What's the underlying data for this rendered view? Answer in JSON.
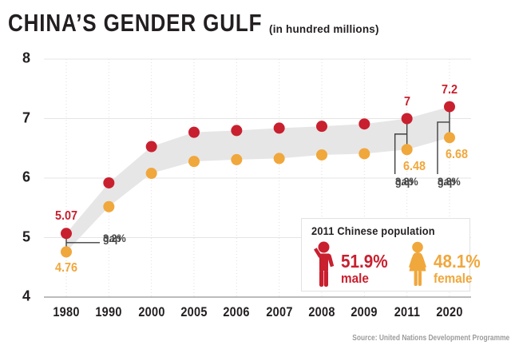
{
  "header": {
    "title": "CHINA’S GENDER GULF",
    "subtitle": "(in hundred millions)"
  },
  "colors": {
    "male": "#c8202f",
    "female": "#f0a73c",
    "band": "#e6e6e6",
    "grid": "#e4e4e4",
    "grid_dotted": "#dedede",
    "axis_baseline": "#bcbcbc",
    "connector": "#3f3f3f",
    "text_dark": "#231f20",
    "gap_text": "#4a4a4a",
    "source_text": "#9c9c9c"
  },
  "chart_data": {
    "type": "line",
    "title": "CHINA’S GENDER GULF",
    "subtitle": "(in hundred millions)",
    "xlabel": "",
    "ylabel": "",
    "categories": [
      "1980",
      "1990",
      "2000",
      "2005",
      "2006",
      "2007",
      "2008",
      "2009",
      "2011",
      "2020"
    ],
    "series": [
      {
        "name": "male",
        "color": "#c8202f",
        "values": [
          5.07,
          5.92,
          6.53,
          6.77,
          6.8,
          6.84,
          6.87,
          6.91,
          7.0,
          7.2
        ]
      },
      {
        "name": "female",
        "color": "#f0a73c",
        "values": [
          4.76,
          5.52,
          6.08,
          6.28,
          6.31,
          6.33,
          6.39,
          6.41,
          6.48,
          6.68
        ]
      }
    ],
    "ylim": [
      4,
      8
    ],
    "yticks": [
      4,
      5,
      6,
      7,
      8
    ],
    "grid": true,
    "band_between_series": true,
    "legend_position": "inside bottom-right box",
    "point_labels": [
      {
        "series": "male",
        "category": "1980",
        "text": "5.07",
        "position": "above"
      },
      {
        "series": "female",
        "category": "1980",
        "text": "4.76",
        "position": "below"
      },
      {
        "series": "male",
        "category": "2011",
        "text": "7",
        "position": "above"
      },
      {
        "series": "female",
        "category": "2011",
        "text": "6.48",
        "position": "below-right"
      },
      {
        "series": "male",
        "category": "2020",
        "text": "7.2",
        "position": "above"
      },
      {
        "series": "female",
        "category": "2020",
        "text": "6.68",
        "position": "below-right"
      }
    ],
    "gap_annotations": [
      {
        "category": "1980",
        "line1": "3.2%",
        "line2": "gap",
        "placement": "right"
      },
      {
        "category": "2011",
        "line1": "3.8%",
        "line2": "gap",
        "placement": "below"
      },
      {
        "category": "2020",
        "line1": "3.8%",
        "line2": "gap",
        "placement": "below"
      }
    ]
  },
  "legend": {
    "title": "2011 Chinese population",
    "male": {
      "percent": "51.9%",
      "label": "male"
    },
    "female": {
      "percent": "48.1%",
      "label": "female"
    }
  },
  "source": "Source: United Nations Development Programme"
}
